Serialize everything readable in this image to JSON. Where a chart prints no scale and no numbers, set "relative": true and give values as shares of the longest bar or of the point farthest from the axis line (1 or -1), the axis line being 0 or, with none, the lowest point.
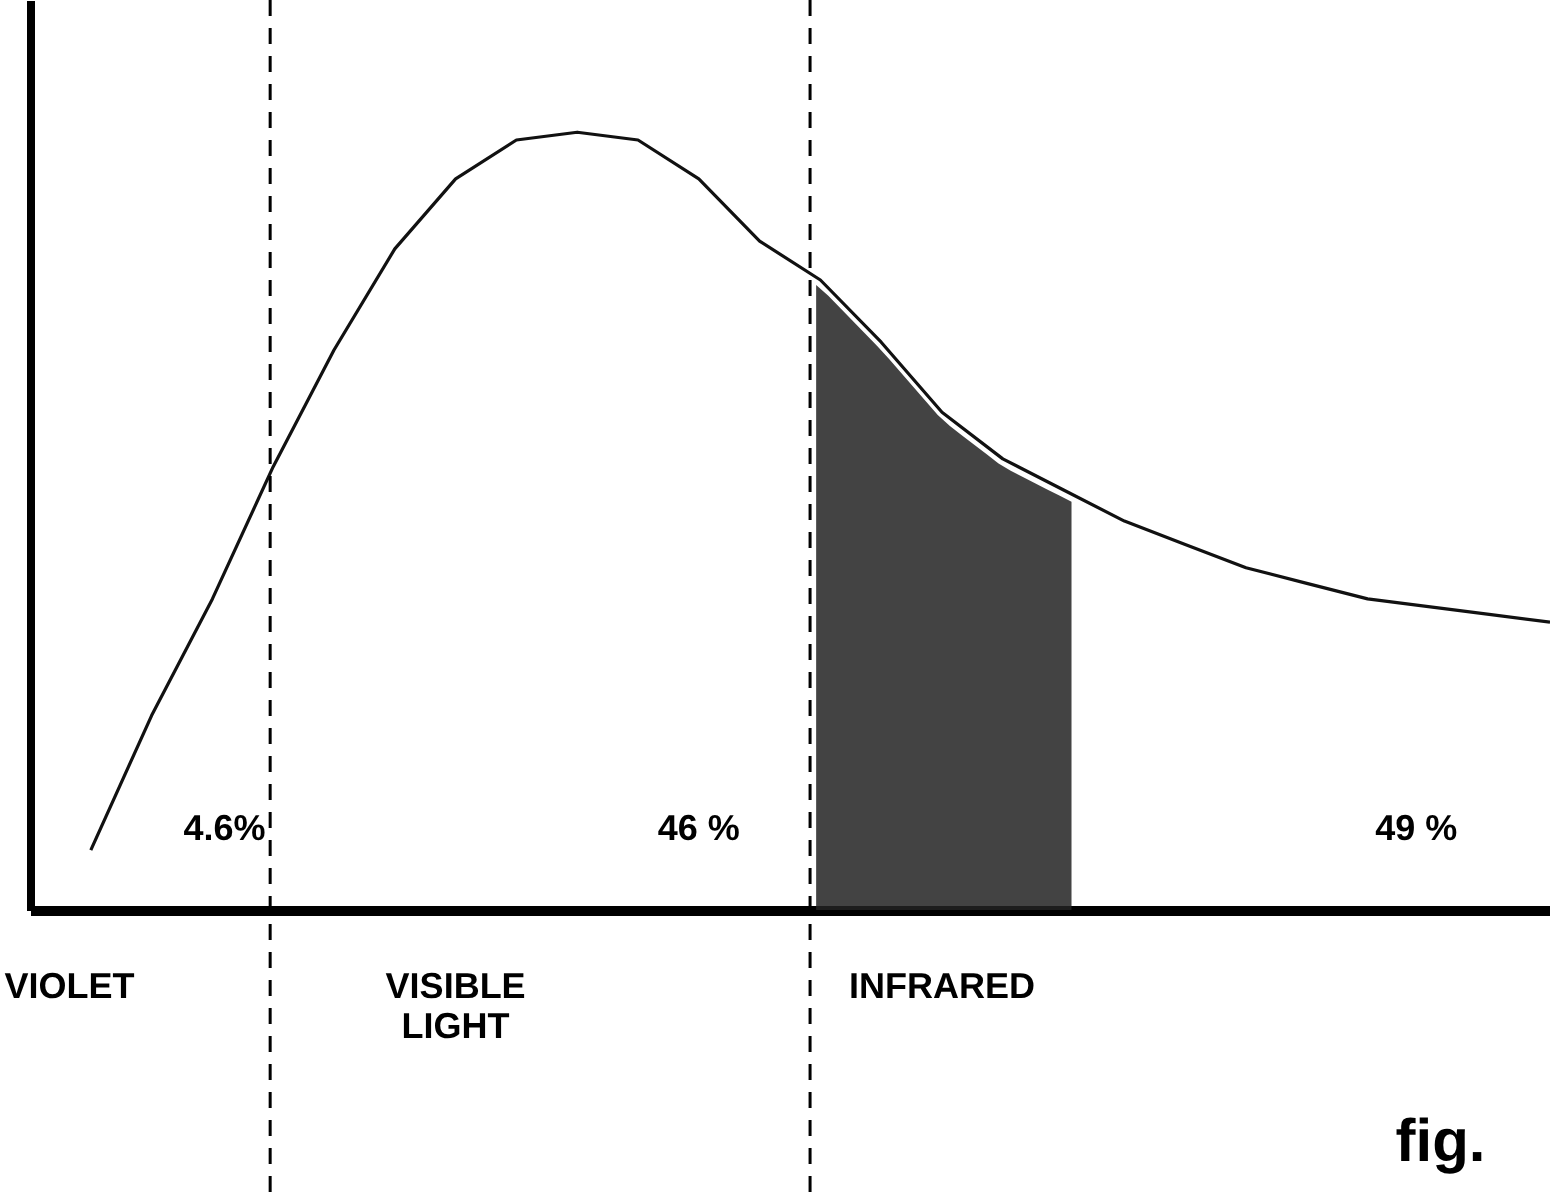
{
  "chart_data": {
    "type": "line",
    "relative": true,
    "line_style": "solid",
    "categories": [
      null,
      null,
      null,
      null,
      null,
      null,
      null,
      null,
      null,
      null,
      null,
      null,
      null,
      null,
      null,
      null,
      null,
      null,
      null,
      null,
      null,
      null,
      null,
      null,
      null
    ],
    "series": [
      {
        "color": "#111111",
        "values": [
          0.077,
          0.25,
          0.4,
          0.57,
          0.72,
          0.85,
          0.94,
          0.99,
          1,
          0.99,
          0.94,
          0.86,
          0.81,
          0.73,
          0.64,
          0.58,
          0.54,
          0.5,
          0.47,
          0.44,
          0.42,
          0.4,
          0.39,
          0.38,
          0.37
        ]
      }
    ],
    "annotations": [
      "4.6%",
      "46 %",
      "49 %",
      "VIOLET",
      "VISIBLE\nLIGHT",
      "INFRARED",
      "fig."
    ]
  }
}
